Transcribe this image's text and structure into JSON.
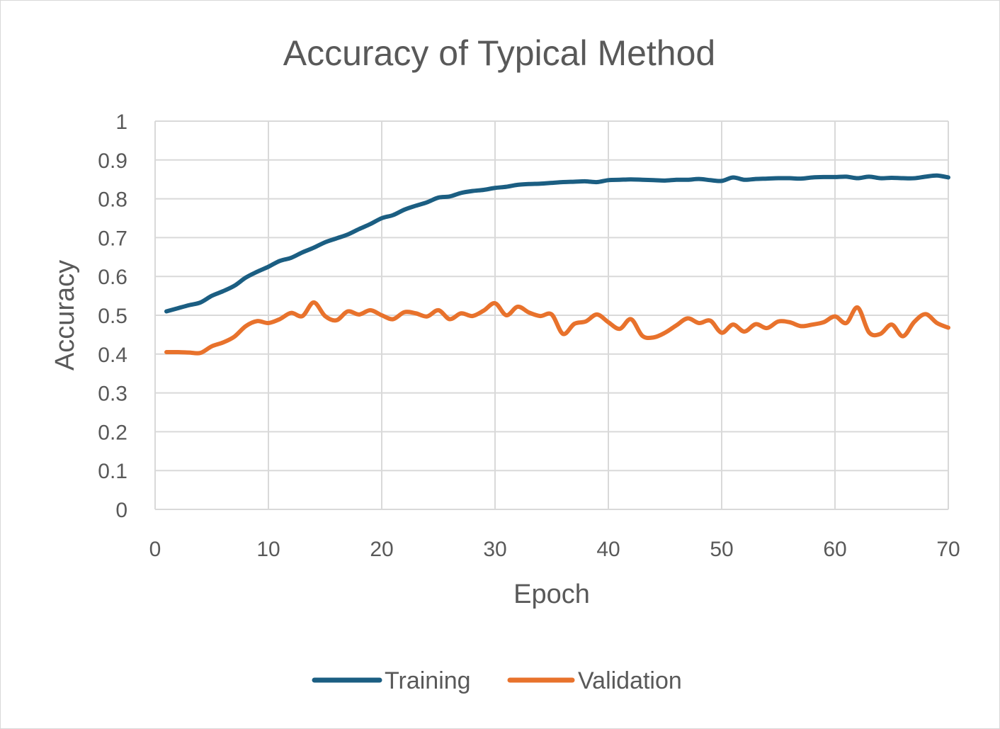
{
  "chart_data": {
    "type": "line",
    "title": "Accuracy of Typical Method",
    "xlabel": "Epoch",
    "ylabel": "Accuracy",
    "xlim": [
      0,
      70
    ],
    "ylim": [
      0,
      1
    ],
    "x_ticks": [
      0,
      10,
      20,
      30,
      40,
      50,
      60,
      70
    ],
    "y_ticks": [
      0,
      0.1,
      0.2,
      0.3,
      0.4,
      0.5,
      0.6,
      0.7,
      0.8,
      0.9,
      1
    ],
    "y_tick_labels": [
      "0",
      "0.1",
      "0.2",
      "0.3",
      "0.4",
      "0.5",
      "0.6",
      "0.7",
      "0.8",
      "0.9",
      "1"
    ],
    "grid": true,
    "legend_position": "bottom",
    "x": [
      1,
      2,
      3,
      4,
      5,
      6,
      7,
      8,
      9,
      10,
      11,
      12,
      13,
      14,
      15,
      16,
      17,
      18,
      19,
      20,
      21,
      22,
      23,
      24,
      25,
      26,
      27,
      28,
      29,
      30,
      31,
      32,
      33,
      34,
      35,
      36,
      37,
      38,
      39,
      40,
      41,
      42,
      43,
      44,
      45,
      46,
      47,
      48,
      49,
      50,
      51,
      52,
      53,
      54,
      55,
      56,
      57,
      58,
      59,
      60,
      61,
      62,
      63,
      64,
      65,
      66,
      67,
      68,
      69,
      70
    ],
    "series": [
      {
        "name": "Training",
        "color": "#1b5e82",
        "values": [
          0.51,
          0.518,
          0.526,
          0.533,
          0.55,
          0.562,
          0.576,
          0.597,
          0.612,
          0.625,
          0.64,
          0.648,
          0.662,
          0.674,
          0.688,
          0.698,
          0.708,
          0.722,
          0.735,
          0.75,
          0.758,
          0.772,
          0.782,
          0.791,
          0.803,
          0.806,
          0.815,
          0.82,
          0.823,
          0.828,
          0.831,
          0.836,
          0.838,
          0.839,
          0.841,
          0.843,
          0.844,
          0.845,
          0.843,
          0.848,
          0.849,
          0.85,
          0.849,
          0.848,
          0.847,
          0.849,
          0.849,
          0.851,
          0.848,
          0.846,
          0.855,
          0.849,
          0.851,
          0.852,
          0.853,
          0.853,
          0.852,
          0.855,
          0.856,
          0.856,
          0.857,
          0.853,
          0.857,
          0.853,
          0.854,
          0.853,
          0.853,
          0.857,
          0.86,
          0.855
        ]
      },
      {
        "name": "Validation",
        "color": "#e8722c",
        "values": [
          0.405,
          0.405,
          0.404,
          0.403,
          0.42,
          0.43,
          0.445,
          0.472,
          0.485,
          0.48,
          0.49,
          0.506,
          0.498,
          0.533,
          0.498,
          0.487,
          0.51,
          0.502,
          0.513,
          0.5,
          0.49,
          0.508,
          0.505,
          0.497,
          0.513,
          0.49,
          0.505,
          0.498,
          0.512,
          0.531,
          0.5,
          0.522,
          0.507,
          0.498,
          0.502,
          0.452,
          0.478,
          0.484,
          0.502,
          0.482,
          0.465,
          0.49,
          0.447,
          0.443,
          0.455,
          0.474,
          0.492,
          0.48,
          0.486,
          0.455,
          0.476,
          0.458,
          0.477,
          0.467,
          0.484,
          0.482,
          0.472,
          0.476,
          0.482,
          0.497,
          0.48,
          0.52,
          0.456,
          0.452,
          0.476,
          0.446,
          0.483,
          0.503,
          0.48,
          0.468
        ]
      }
    ]
  }
}
